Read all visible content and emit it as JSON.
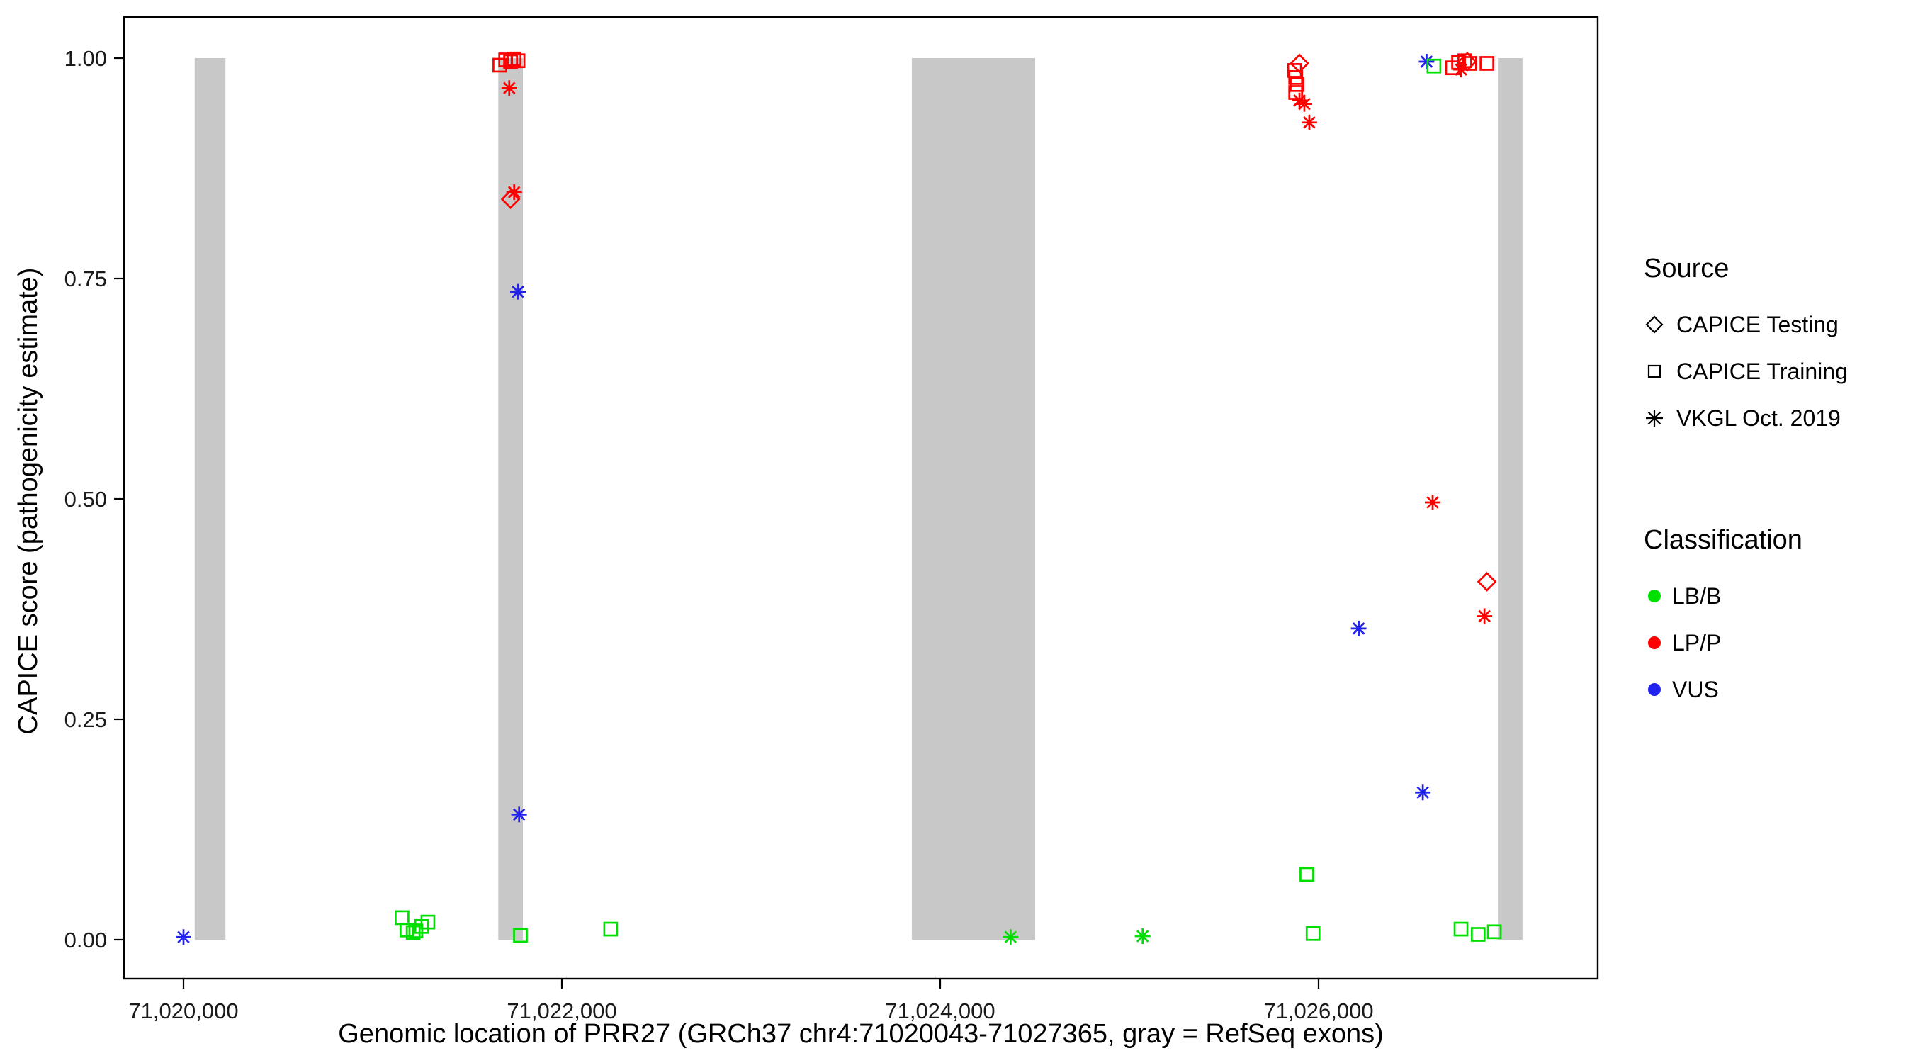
{
  "chart_data": {
    "type": "scatter",
    "title": "",
    "xlabel": "Genomic location of PRR27 (GRCh37 chr4:71020043-71027365, gray = RefSeq exons)",
    "ylabel": "CAPICE score (pathogenicity estimate)",
    "xlim": [
      71019690,
      71027480
    ],
    "ylim": [
      -0.045,
      1.046
    ],
    "grid": "off",
    "legend_position": "right",
    "xticks": [
      {
        "value": 71020000,
        "label": "71,020,000"
      },
      {
        "value": 71022000,
        "label": "71,022,000"
      },
      {
        "value": 71024000,
        "label": "71,024,000"
      },
      {
        "value": 71026000,
        "label": "71,026,000"
      }
    ],
    "yticks": [
      {
        "value": 0.0,
        "label": "0.00"
      },
      {
        "value": 0.25,
        "label": "0.25"
      },
      {
        "value": 0.5,
        "label": "0.50"
      },
      {
        "value": 0.75,
        "label": "0.75"
      },
      {
        "value": 1.0,
        "label": "1.00"
      }
    ],
    "exon_color": "#c8c8c8",
    "exons": [
      {
        "start": 71020059,
        "end": 71020222
      },
      {
        "start": 71021664,
        "end": 71021794
      },
      {
        "start": 71023850,
        "end": 71024502
      },
      {
        "start": 71026948,
        "end": 71027078
      }
    ],
    "classification_colors": {
      "LB/B": "#00e000",
      "LP/P": "#ff0000",
      "VUS": "#2222ee"
    },
    "points": [
      {
        "x": 71020000,
        "y": 0.003,
        "source": "vkgl",
        "cls": "VUS"
      },
      {
        "x": 71021155,
        "y": 0.025,
        "source": "training",
        "cls": "LB/B"
      },
      {
        "x": 71021181,
        "y": 0.011,
        "source": "training",
        "cls": "LB/B"
      },
      {
        "x": 71021214,
        "y": 0.008,
        "source": "training",
        "cls": "LB/B"
      },
      {
        "x": 71021228,
        "y": 0.01,
        "source": "training",
        "cls": "LB/B"
      },
      {
        "x": 71021259,
        "y": 0.015,
        "source": "training",
        "cls": "LB/B"
      },
      {
        "x": 71021292,
        "y": 0.02,
        "source": "training",
        "cls": "LB/B"
      },
      {
        "x": 71021781,
        "y": 0.005,
        "source": "training",
        "cls": "LB/B"
      },
      {
        "x": 71022258,
        "y": 0.012,
        "source": "training",
        "cls": "LB/B"
      },
      {
        "x": 71021672,
        "y": 0.992,
        "source": "training",
        "cls": "LP/P"
      },
      {
        "x": 71021703,
        "y": 0.998,
        "source": "training",
        "cls": "LP/P"
      },
      {
        "x": 71021729,
        "y": 0.996,
        "source": "training",
        "cls": "LP/P"
      },
      {
        "x": 71021748,
        "y": 0.999,
        "source": "training",
        "cls": "LP/P"
      },
      {
        "x": 71021768,
        "y": 0.997,
        "source": "training",
        "cls": "LP/P"
      },
      {
        "x": 71021722,
        "y": 0.966,
        "source": "vkgl",
        "cls": "LP/P"
      },
      {
        "x": 71021748,
        "y": 0.848,
        "source": "vkgl",
        "cls": "LP/P"
      },
      {
        "x": 71021729,
        "y": 0.84,
        "source": "testing",
        "cls": "LP/P"
      },
      {
        "x": 71021768,
        "y": 0.735,
        "source": "vkgl",
        "cls": "VUS"
      },
      {
        "x": 71021774,
        "y": 0.142,
        "source": "vkgl",
        "cls": "VUS"
      },
      {
        "x": 71024372,
        "y": 0.003,
        "source": "vkgl",
        "cls": "LB/B"
      },
      {
        "x": 71025070,
        "y": 0.004,
        "source": "vkgl",
        "cls": "LB/B"
      },
      {
        "x": 71025899,
        "y": 0.994,
        "source": "testing",
        "cls": "LP/P"
      },
      {
        "x": 71025873,
        "y": 0.986,
        "source": "training",
        "cls": "LP/P"
      },
      {
        "x": 71025879,
        "y": 0.978,
        "source": "training",
        "cls": "LP/P"
      },
      {
        "x": 71025886,
        "y": 0.97,
        "source": "training",
        "cls": "LP/P"
      },
      {
        "x": 71025879,
        "y": 0.961,
        "source": "training",
        "cls": "LP/P"
      },
      {
        "x": 71025899,
        "y": 0.952,
        "source": "vkgl",
        "cls": "LP/P"
      },
      {
        "x": 71025925,
        "y": 0.948,
        "source": "vkgl",
        "cls": "LP/P"
      },
      {
        "x": 71025951,
        "y": 0.927,
        "source": "vkgl",
        "cls": "LP/P"
      },
      {
        "x": 71025938,
        "y": 0.074,
        "source": "training",
        "cls": "LB/B"
      },
      {
        "x": 71025971,
        "y": 0.007,
        "source": "training",
        "cls": "LB/B"
      },
      {
        "x": 71026212,
        "y": 0.353,
        "source": "vkgl",
        "cls": "VUS"
      },
      {
        "x": 71026551,
        "y": 0.167,
        "source": "vkgl",
        "cls": "VUS"
      },
      {
        "x": 71026603,
        "y": 0.496,
        "source": "vkgl",
        "cls": "LP/P"
      },
      {
        "x": 71026571,
        "y": 0.996,
        "source": "vkgl",
        "cls": "VUS"
      },
      {
        "x": 71026610,
        "y": 0.991,
        "source": "training",
        "cls": "LB/B"
      },
      {
        "x": 71026708,
        "y": 0.989,
        "source": "training",
        "cls": "LP/P"
      },
      {
        "x": 71026740,
        "y": 0.995,
        "source": "training",
        "cls": "LP/P"
      },
      {
        "x": 71026773,
        "y": 0.997,
        "source": "training",
        "cls": "LP/P"
      },
      {
        "x": 71026799,
        "y": 0.994,
        "source": "training",
        "cls": "LP/P"
      },
      {
        "x": 71026753,
        "y": 0.987,
        "source": "vkgl",
        "cls": "LP/P"
      },
      {
        "x": 71026786,
        "y": 0.996,
        "source": "testing",
        "cls": "LP/P"
      },
      {
        "x": 71026890,
        "y": 0.994,
        "source": "training",
        "cls": "LP/P"
      },
      {
        "x": 71026890,
        "y": 0.406,
        "source": "testing",
        "cls": "LP/P"
      },
      {
        "x": 71026877,
        "y": 0.367,
        "source": "vkgl",
        "cls": "LP/P"
      },
      {
        "x": 71026753,
        "y": 0.012,
        "source": "training",
        "cls": "LB/B"
      },
      {
        "x": 71026844,
        "y": 0.006,
        "source": "training",
        "cls": "LB/B"
      },
      {
        "x": 71026929,
        "y": 0.009,
        "source": "training",
        "cls": "LB/B"
      }
    ]
  },
  "legend": {
    "source_title": "Source",
    "source_items": [
      {
        "label": "CAPICE Testing",
        "shape": "diamond"
      },
      {
        "label": "CAPICE Training",
        "shape": "square"
      },
      {
        "label": "VKGL Oct. 2019",
        "shape": "asterisk"
      }
    ],
    "classification_title": "Classification",
    "classification_items": [
      {
        "label": "LB/B",
        "color": "#00e000"
      },
      {
        "label": "LP/P",
        "color": "#ff0000"
      },
      {
        "label": "VUS",
        "color": "#2222ee"
      }
    ]
  }
}
